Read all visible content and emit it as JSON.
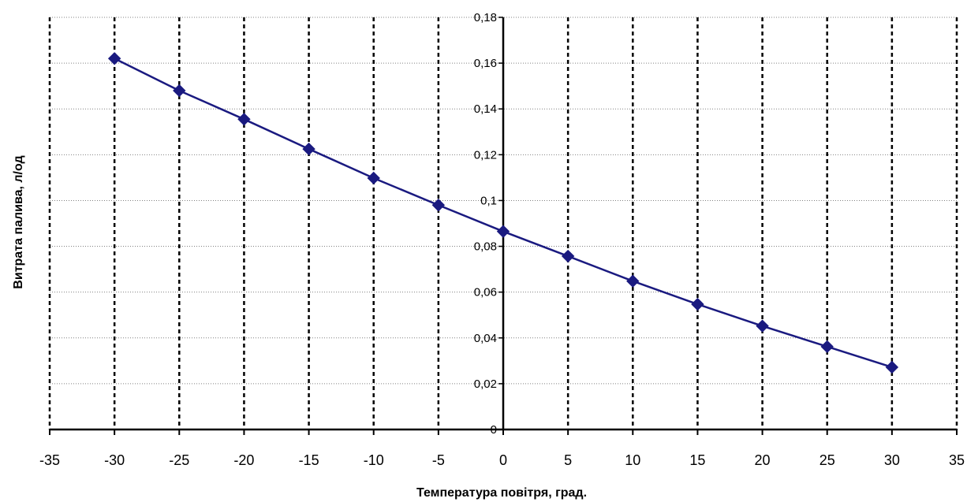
{
  "chart_data": {
    "type": "line",
    "title": "",
    "xlabel": "Температура повітря, град.",
    "ylabel": "Витрата палива, л/од",
    "xlim": [
      -35,
      35
    ],
    "ylim": [
      0,
      0.18
    ],
    "x_ticks": [
      -35,
      -30,
      -25,
      -20,
      -15,
      -10,
      -5,
      0,
      5,
      10,
      15,
      20,
      25,
      30,
      35
    ],
    "x_tick_labels": [
      "-35",
      "-30",
      "-25",
      "-20",
      "-15",
      "-10",
      "-5",
      "0",
      "5",
      "10",
      "15",
      "20",
      "25",
      "30",
      "35"
    ],
    "y_ticks": [
      0,
      0.02,
      0.04,
      0.06,
      0.08,
      0.1,
      0.12,
      0.14,
      0.16,
      0.18
    ],
    "y_tick_labels": [
      "0",
      "0,02",
      "0,04",
      "0,06",
      "0,08",
      "0,1",
      "0,12",
      "0,14",
      "0,16",
      "0,18"
    ],
    "grid": "horizontal dotted gridlines; vertical dashed gridlines",
    "legend": "none",
    "marker": "diamond",
    "series_color": "#1a1a80",
    "series": [
      {
        "x": [
          -30,
          -25,
          -20,
          -15,
          -10,
          -5,
          0,
          5,
          10,
          15,
          20,
          25,
          30
        ],
        "values": [
          0.162,
          0.148,
          0.1355,
          0.1225,
          0.1098,
          0.098,
          0.0865,
          0.0757,
          0.0648,
          0.0547,
          0.0452,
          0.0362,
          0.0272
        ]
      }
    ]
  }
}
